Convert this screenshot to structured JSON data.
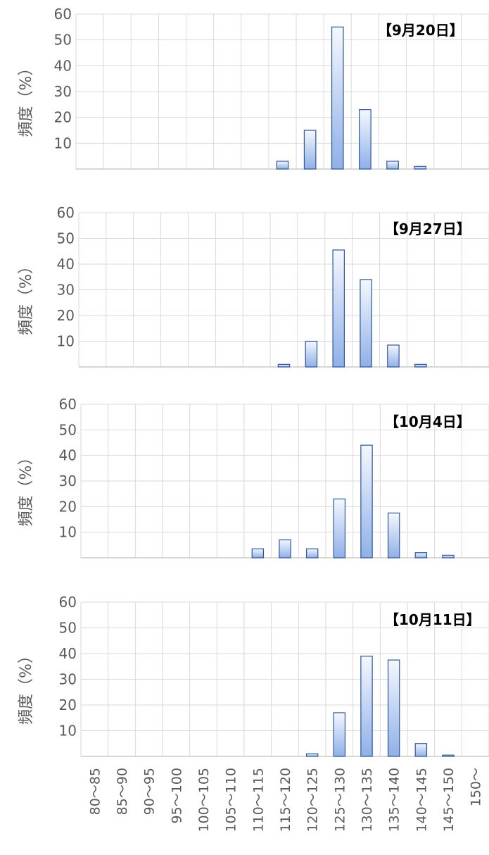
{
  "ylabel": "頻度（%）",
  "chart_data": [
    {
      "type": "bar",
      "title": "【9月20日】",
      "ylabel": "頻度（%）",
      "categories": [
        "80～85",
        "85～90",
        "90～95",
        "95～100",
        "100～105",
        "105～110",
        "110～115",
        "115～120",
        "120～125",
        "125～130",
        "130～135",
        "135～140",
        "140～145",
        "145～150",
        "150～"
      ],
      "values": [
        0,
        0,
        0,
        0,
        0,
        0,
        0,
        3,
        15,
        55,
        23,
        3,
        1,
        0,
        0
      ],
      "ylim": [
        0,
        60
      ],
      "yticks": [
        10,
        20,
        30,
        40,
        50,
        60
      ],
      "grid": true
    },
    {
      "type": "bar",
      "title": "【9月27日】",
      "ylabel": "頻度（%）",
      "categories": [
        "80～85",
        "85～90",
        "90～95",
        "95～100",
        "100～105",
        "105～110",
        "110～115",
        "115～120",
        "120～125",
        "125～130",
        "130～135",
        "135～140",
        "140～145",
        "145～150",
        "150～"
      ],
      "values": [
        0,
        0,
        0,
        0,
        0,
        0,
        0,
        1,
        10,
        45.5,
        34,
        8.5,
        1,
        0,
        0
      ],
      "ylim": [
        0,
        60
      ],
      "yticks": [
        10,
        20,
        30,
        40,
        50,
        60
      ],
      "grid": true
    },
    {
      "type": "bar",
      "title": "【10月4日】",
      "ylabel": "頻度（%）",
      "categories": [
        "80～85",
        "85～90",
        "90～95",
        "95～100",
        "100～105",
        "105～110",
        "110～115",
        "115～120",
        "120～125",
        "125～130",
        "130～135",
        "135～140",
        "140～145",
        "145～150",
        "150～"
      ],
      "values": [
        0,
        0,
        0,
        0,
        0,
        0,
        3.5,
        7,
        3.5,
        23,
        44,
        17.5,
        2,
        1,
        0
      ],
      "ylim": [
        0,
        60
      ],
      "yticks": [
        10,
        20,
        30,
        40,
        50,
        60
      ],
      "grid": true
    },
    {
      "type": "bar",
      "title": "【10月11日】",
      "ylabel": "頻度（%）",
      "categories": [
        "80～85",
        "85～90",
        "90～95",
        "95～100",
        "100～105",
        "105～110",
        "110～115",
        "115～120",
        "120～125",
        "125～130",
        "130～135",
        "135～140",
        "140～145",
        "145～150",
        "150～"
      ],
      "values": [
        0,
        0,
        0,
        0,
        0,
        0,
        0,
        0,
        1,
        17,
        39,
        37.5,
        5,
        0.5,
        0
      ],
      "ylim": [
        0,
        60
      ],
      "yticks": [
        10,
        20,
        30,
        40,
        50,
        60
      ],
      "grid": true
    }
  ]
}
